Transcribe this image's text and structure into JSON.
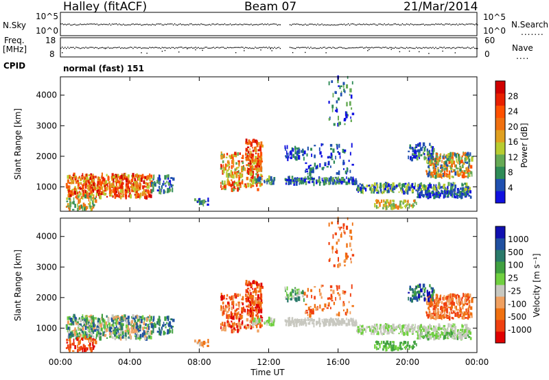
{
  "header": {
    "title": "Halley (fitACF)",
    "beam": "Beam 07",
    "date": "21/Mar/2014"
  },
  "panels": {
    "nsky": {
      "label": "N.Sky",
      "right_label": "N.Search",
      "left_ticks": [
        "10^5",
        "10^0"
      ],
      "right_ticks": [
        "10^5",
        "10^0"
      ],
      "right_dots": "......."
    },
    "freq": {
      "label": "Freq.",
      "unit": "[MHz]",
      "right_label": "Nave",
      "left_ticks": [
        "18",
        "8"
      ],
      "right_ticks": [
        "60",
        "0"
      ],
      "right_dots": "...."
    },
    "cpid": {
      "label": "CPID",
      "value": "normal (fast) 151"
    }
  },
  "chart_data": [
    {
      "type": "heatmap",
      "quantity": "Power",
      "ylabel": "Slant Range [km]",
      "ylim": [
        200,
        4600
      ],
      "y_ticks": [
        1000,
        2000,
        3000,
        4000
      ],
      "x_ticks": [
        "00:00",
        "04:00",
        "08:00",
        "12:00",
        "16:00",
        "20:00",
        "00:00"
      ],
      "colorbar": {
        "label": "Power [dB]",
        "ticks": [
          "4",
          "8",
          "12",
          "16",
          "20",
          "24",
          "28"
        ],
        "colors": [
          "#1010e0",
          "#2050b0",
          "#2e8b57",
          "#66aa55",
          "#b8cc30",
          "#e0a020",
          "#f07010",
          "#ff5000",
          "#e82000",
          "#d00000"
        ]
      }
    },
    {
      "type": "heatmap",
      "quantity": "Velocity",
      "ylabel": "Slant Range [km]",
      "ylim": [
        200,
        4600
      ],
      "y_ticks": [
        1000,
        2000,
        3000,
        4000
      ],
      "x_ticks": [
        "00:00",
        "04:00",
        "08:00",
        "12:00",
        "16:00",
        "20:00",
        "00:00"
      ],
      "xlabel": "Time UT",
      "colorbar": {
        "label": "Velocity [m s⁻¹]",
        "ticks": [
          "1000",
          "500",
          "100",
          "25",
          "-25",
          "-100",
          "-500",
          "-1000"
        ],
        "colors": [
          "#1010b0",
          "#2050a0",
          "#2a7a6a",
          "#40a040",
          "#70d040",
          "#c8c8c0",
          "#f0a060",
          "#f07010",
          "#f04010",
          "#e00000"
        ]
      }
    }
  ]
}
